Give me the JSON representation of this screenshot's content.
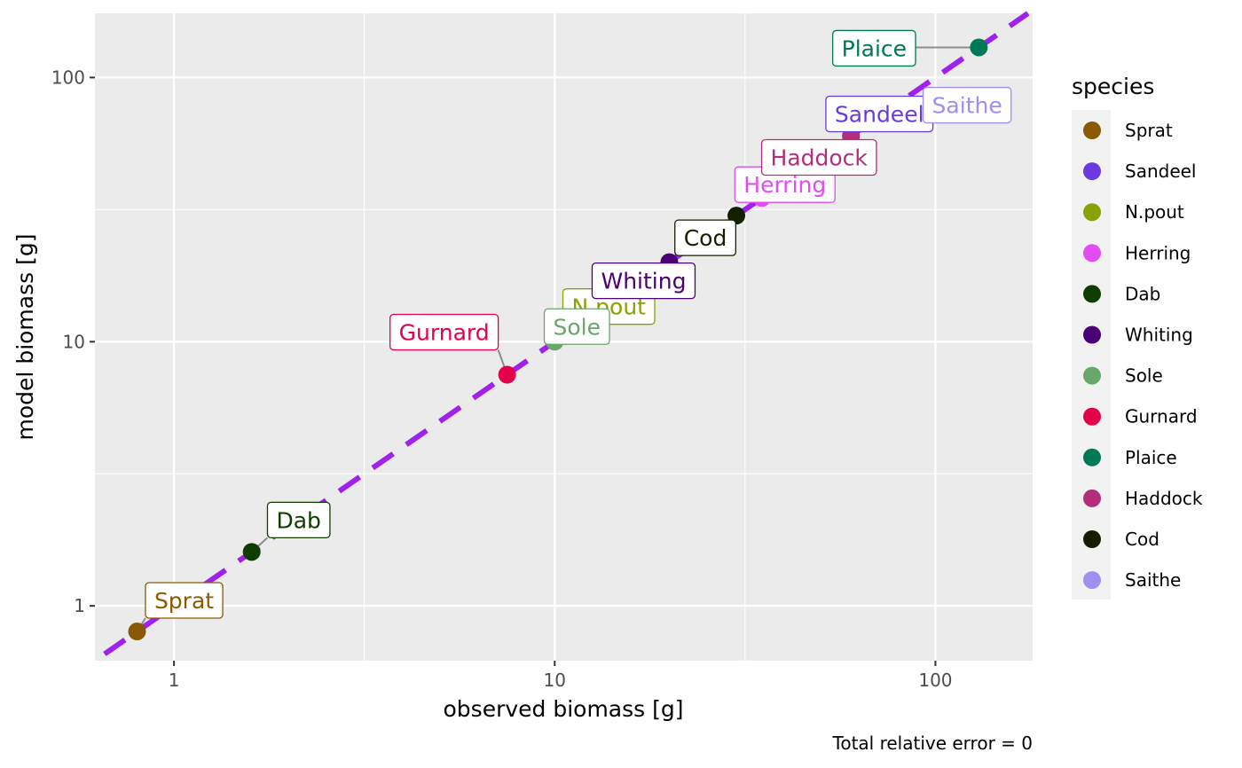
{
  "chart_data": {
    "type": "scatter",
    "xlabel": "observed biomass [g]",
    "ylabel": "model biomass [g]",
    "caption": "Total relative error = 0",
    "xscale": "log10",
    "yscale": "log10",
    "xlim": [
      0.62,
      180
    ],
    "ylim": [
      0.62,
      175
    ],
    "x_ticks": [
      1,
      10,
      100
    ],
    "x_tick_labels": [
      "1",
      "10",
      "100"
    ],
    "y_ticks": [
      1,
      10,
      100
    ],
    "y_tick_labels": [
      "1",
      "10",
      "100"
    ],
    "grid": true,
    "reference_line": {
      "type": "identity",
      "style": "dashed",
      "color": "#a020f0"
    },
    "legend": {
      "title": "species",
      "placement": "right"
    },
    "points": [
      {
        "species": "Sprat",
        "x": 0.8,
        "y": 0.8,
        "color": "#8B5A00",
        "label": "Sprat"
      },
      {
        "species": "Sandeel",
        "x": 60,
        "y": 60,
        "color": "#6A3AE0",
        "label": "Sandeel"
      },
      {
        "species": "N.pout",
        "x": 12,
        "y": 12,
        "color": "#8BA100",
        "label": "N.pout"
      },
      {
        "species": "Herring",
        "x": 35,
        "y": 35,
        "color": "#E14DF2",
        "label": "Herring"
      },
      {
        "species": "Dab",
        "x": 1.6,
        "y": 1.6,
        "color": "#0F3D00",
        "label": "Dab"
      },
      {
        "species": "Whiting",
        "x": 20,
        "y": 20,
        "color": "#4B0073",
        "label": "Whiting"
      },
      {
        "species": "Sole",
        "x": 10,
        "y": 10,
        "color": "#6AA56A",
        "label": "Sole"
      },
      {
        "species": "Gurnard",
        "x": 7.5,
        "y": 7.5,
        "color": "#E5004A",
        "label": "Gurnard"
      },
      {
        "species": "Plaice",
        "x": 130,
        "y": 130,
        "color": "#007A55",
        "label": "Plaice"
      },
      {
        "species": "Haddock",
        "x": 60,
        "y": 60,
        "color": "#B22D7A",
        "label": "Haddock"
      },
      {
        "species": "Cod",
        "x": 30,
        "y": 30,
        "color": "#141F00",
        "label": "Cod"
      },
      {
        "species": "Saithe",
        "x": 78,
        "y": 78,
        "color": "#9F8FF0",
        "label": "Saithe"
      }
    ]
  }
}
